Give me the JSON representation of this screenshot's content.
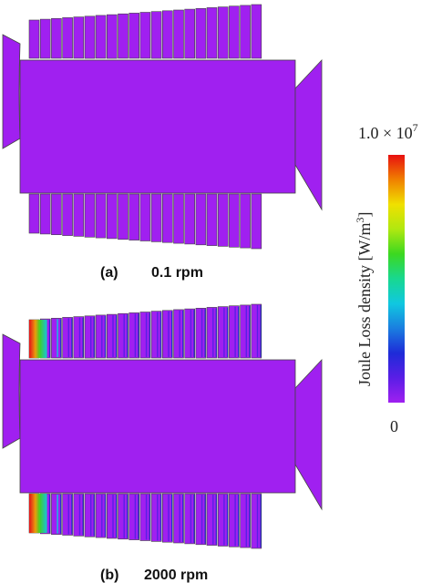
{
  "panels": [
    {
      "id": "a",
      "label": "(a)",
      "speed": "0.1 rpm",
      "loss_level": "none"
    },
    {
      "id": "b",
      "label": "(b)",
      "speed": "2000 rpm",
      "loss_level": "concentrated at the outer slot ends and along the slot stripes"
    }
  ],
  "colorbar": {
    "title": "Joule Loss density [W/m",
    "title_sup": "3",
    "title_close": "]",
    "max_label_mantissa": "1.0 × 10",
    "max_label_exp": "7",
    "min_label": "0",
    "colors": [
      "#a020f0",
      "#5a1ee6",
      "#1e2bd8",
      "#1a7ee0",
      "#10c8e0",
      "#18d890",
      "#3cd820",
      "#b0e810",
      "#f0e000",
      "#f08000",
      "#e81010"
    ]
  },
  "colors": {
    "body": "#a020f0",
    "slot_gap": "#6a6a6a",
    "outline": "#444444"
  },
  "slot_count": 21
}
